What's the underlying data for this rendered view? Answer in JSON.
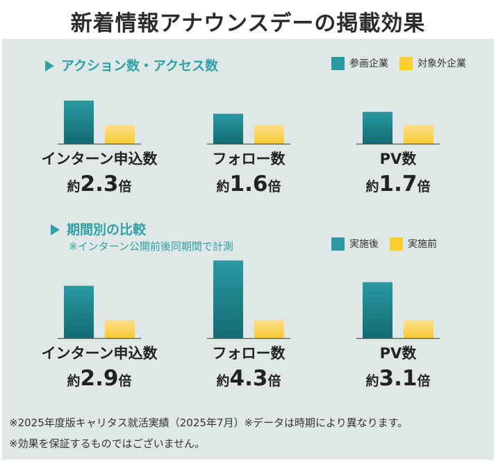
{
  "title": "新着情報アナウンスデーの掲載効果",
  "colors": {
    "teal_top": "#2a9aa2",
    "teal_bottom": "#136b73",
    "yellow_top": "#fde08e",
    "yellow_bottom": "#f8c92e",
    "panel": "#dfe8e7",
    "accent": "#2fa0a6"
  },
  "sections": [
    {
      "title": "アクション数・アクセス数",
      "note": "",
      "legend": [
        "参画企業",
        "対象外企業"
      ]
    },
    {
      "title": "期間別の比較",
      "note": "※インターン公開前後同期間で計測",
      "legend": [
        "実施後",
        "実施前"
      ]
    }
  ],
  "chart_data": [
    {
      "type": "bar",
      "series": [
        {
          "name": "参画企業",
          "values": [
            2.3
          ]
        },
        {
          "name": "対象外企業",
          "values": [
            1.0
          ]
        }
      ],
      "label": "インターン申込数",
      "prefix": "約",
      "value": "2.3",
      "suffix": "倍"
    },
    {
      "type": "bar",
      "series": [
        {
          "name": "参画企業",
          "values": [
            1.6
          ]
        },
        {
          "name": "対象外企業",
          "values": [
            1.0
          ]
        }
      ],
      "label": "フォロー数",
      "prefix": "約",
      "value": "1.6",
      "suffix": "倍"
    },
    {
      "type": "bar",
      "series": [
        {
          "name": "参画企業",
          "values": [
            1.7
          ]
        },
        {
          "name": "対象外企業",
          "values": [
            1.0
          ]
        }
      ],
      "label": "PV数",
      "prefix": "約",
      "value": "1.7",
      "suffix": "倍"
    },
    {
      "type": "bar",
      "series": [
        {
          "name": "実施後",
          "values": [
            2.9
          ]
        },
        {
          "name": "実施前",
          "values": [
            1.0
          ]
        }
      ],
      "label": "インターン申込数",
      "prefix": "約",
      "value": "2.9",
      "suffix": "倍"
    },
    {
      "type": "bar",
      "series": [
        {
          "name": "実施後",
          "values": [
            4.3
          ]
        },
        {
          "name": "実施前",
          "values": [
            1.0
          ]
        }
      ],
      "label": "フォロー数",
      "prefix": "約",
      "value": "4.3",
      "suffix": "倍"
    },
    {
      "type": "bar",
      "series": [
        {
          "name": "実施後",
          "values": [
            3.1
          ]
        },
        {
          "name": "実施前",
          "values": [
            1.0
          ]
        }
      ],
      "label": "PV数",
      "prefix": "約",
      "value": "3.1",
      "suffix": "倍"
    }
  ],
  "footnotes": [
    "※2025年度版キャリタス就活実績（2025年7月）※データは時期により異なります。",
    "※効果を保証するものではございません。"
  ]
}
